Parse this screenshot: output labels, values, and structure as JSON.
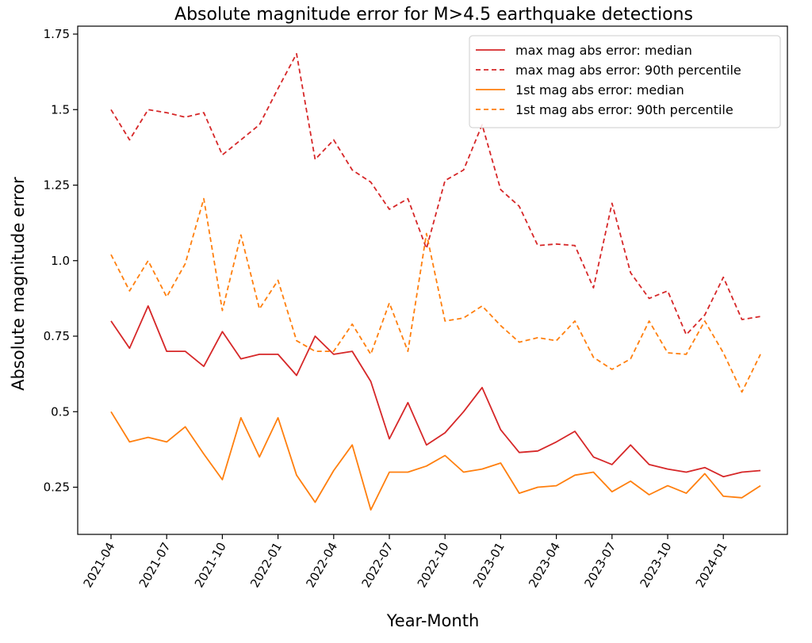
{
  "chart_data": {
    "type": "line",
    "title": "Absolute magnitude error for M>4.5 earthquake detections",
    "xlabel": "Year-Month",
    "ylabel": "Absolute magnitude error",
    "ylim": [
      0.05,
      1.8
    ],
    "yticks": [
      0.25,
      0.5,
      0.75,
      1.0,
      1.25,
      1.5,
      1.75
    ],
    "ytick_labels": [
      "0.25",
      "0.5",
      "0.75",
      "1.0",
      "1.25",
      "1.5",
      "1.75"
    ],
    "xticks": [
      "2021-04",
      "2021-07",
      "2021-10",
      "2022-01",
      "2022-04",
      "2022-07",
      "2022-10",
      "2023-01",
      "2023-04",
      "2023-07",
      "2023-10",
      "2024-01"
    ],
    "x": [
      "2021-04",
      "2021-05",
      "2021-06",
      "2021-07",
      "2021-08",
      "2021-09",
      "2021-10",
      "2021-11",
      "2021-12",
      "2022-01",
      "2022-02",
      "2022-03",
      "2022-04",
      "2022-05",
      "2022-06",
      "2022-07",
      "2022-08",
      "2022-09",
      "2022-10",
      "2022-11",
      "2022-12",
      "2023-01",
      "2023-02",
      "2023-03",
      "2023-04",
      "2023-05",
      "2023-06",
      "2023-07",
      "2023-08",
      "2023-09",
      "2023-10",
      "2023-11",
      "2023-12",
      "2024-01",
      "2024-02",
      "2024-03"
    ],
    "legend_position": "top-right",
    "grid": false,
    "series": [
      {
        "name": "max mag abs error: median",
        "color": "#d62728",
        "dashed": false,
        "values": [
          0.8,
          0.71,
          0.85,
          0.7,
          0.7,
          0.65,
          0.765,
          0.675,
          0.69,
          0.69,
          0.62,
          0.75,
          0.69,
          0.7,
          0.6,
          0.41,
          0.53,
          0.39,
          0.43,
          0.5,
          0.58,
          0.44,
          0.365,
          0.37,
          0.4,
          0.435,
          0.35,
          0.325,
          0.39,
          0.325,
          0.31,
          0.3,
          0.315,
          0.285,
          0.3,
          0.305
        ]
      },
      {
        "name": "max mag abs error: 90th percentile",
        "color": "#d62728",
        "dashed": true,
        "values": [
          1.5,
          1.4,
          1.5,
          1.49,
          1.475,
          1.49,
          1.35,
          1.4,
          1.45,
          1.57,
          1.685,
          1.335,
          1.4,
          1.3,
          1.26,
          1.17,
          1.205,
          1.04,
          1.265,
          1.3,
          1.45,
          1.235,
          1.18,
          1.05,
          1.055,
          1.05,
          0.91,
          1.19,
          0.96,
          0.875,
          0.9,
          0.755,
          0.82,
          0.945,
          0.805,
          0.815
        ]
      },
      {
        "name": "1st mag abs error: median",
        "color": "#ff7f0e",
        "dashed": false,
        "values": [
          0.5,
          0.4,
          0.415,
          0.4,
          0.45,
          0.36,
          0.275,
          0.48,
          0.35,
          0.48,
          0.29,
          0.2,
          0.305,
          0.39,
          0.175,
          0.3,
          0.3,
          0.32,
          0.355,
          0.3,
          0.31,
          0.33,
          0.23,
          0.25,
          0.255,
          0.29,
          0.3,
          0.235,
          0.27,
          0.225,
          0.255,
          0.23,
          0.295,
          0.22,
          0.215,
          0.255
        ]
      },
      {
        "name": "1st mag abs error: 90th percentile",
        "color": "#ff7f0e",
        "dashed": true,
        "values": [
          1.02,
          0.9,
          1.0,
          0.88,
          0.99,
          1.205,
          0.835,
          1.085,
          0.84,
          0.935,
          0.735,
          0.7,
          0.7,
          0.79,
          0.69,
          0.86,
          0.7,
          1.09,
          0.8,
          0.81,
          0.85,
          0.785,
          0.73,
          0.745,
          0.735,
          0.8,
          0.68,
          0.64,
          0.675,
          0.8,
          0.695,
          0.69,
          0.8,
          0.695,
          0.565,
          0.69
        ]
      }
    ]
  }
}
